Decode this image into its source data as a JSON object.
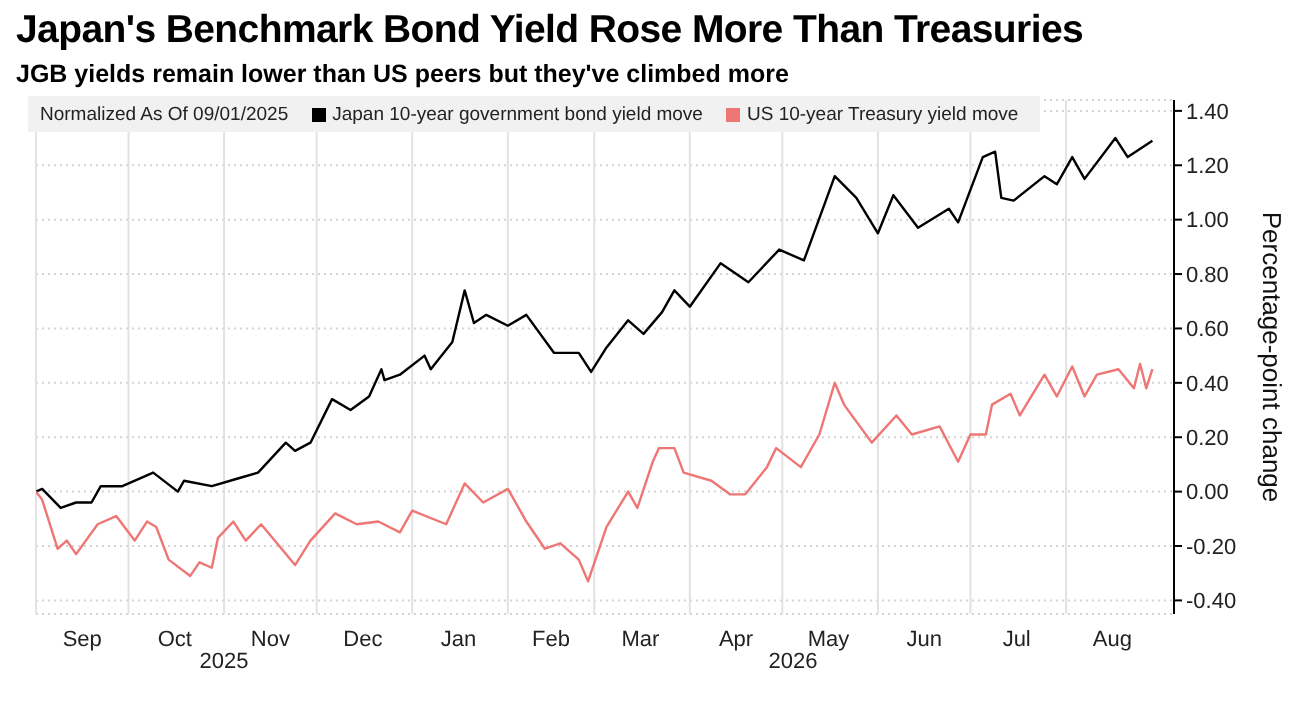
{
  "chart_data": {
    "type": "line",
    "title": "Japan's Benchmark Bond Yield Rose More Than Treasuries",
    "subtitle": "JGB yields remain lower than US peers but they've climbed more",
    "ylabel": "Percentage-point change",
    "legend_title": "Normalized As Of 09/01/2025",
    "legend": "top",
    "grid": true,
    "marker": "none",
    "line_style": "solid",
    "xlim": [
      "2025-09-01",
      "2026-09-05"
    ],
    "xticks": [
      {
        "value": "2025-09-01",
        "label": null
      },
      {
        "value": "2025-09-16",
        "label": "Sep"
      },
      {
        "value": "2025-10-01",
        "label": null
      },
      {
        "value": "2025-10-16",
        "label": "Oct"
      },
      {
        "value": "2025-11-01",
        "label": null
      },
      {
        "value": "2025-11-16",
        "label": "Nov"
      },
      {
        "value": "2025-12-01",
        "label": null
      },
      {
        "value": "2025-12-16",
        "label": "Dec"
      },
      {
        "value": "2026-01-01",
        "label": null
      },
      {
        "value": "2026-01-16",
        "label": "Jan"
      },
      {
        "value": "2026-02-01",
        "label": null
      },
      {
        "value": "2026-02-15",
        "label": "Feb"
      },
      {
        "value": "2026-03-01",
        "label": null
      },
      {
        "value": "2026-03-16",
        "label": "Mar"
      },
      {
        "value": "2026-04-01",
        "label": null
      },
      {
        "value": "2026-04-16",
        "label": "Apr"
      },
      {
        "value": "2026-05-01",
        "label": null
      },
      {
        "value": "2026-05-16",
        "label": "May"
      },
      {
        "value": "2026-06-01",
        "label": null
      },
      {
        "value": "2026-06-16",
        "label": "Jun"
      },
      {
        "value": "2026-07-01",
        "label": null
      },
      {
        "value": "2026-07-16",
        "label": "Jul"
      },
      {
        "value": "2026-08-01",
        "label": null
      },
      {
        "value": "2026-08-16",
        "label": "Aug"
      }
    ],
    "ylim": [
      -0.45,
      1.44
    ],
    "yticks": [
      {
        "value": -0.4,
        "label": "-0.40"
      },
      {
        "value": -0.2,
        "label": "-0.20"
      },
      {
        "value": 0,
        "label": "0.00"
      },
      {
        "value": 0.2,
        "label": "0.20"
      },
      {
        "value": 0.4,
        "label": "0.40"
      },
      {
        "value": 0.6,
        "label": "0.60"
      },
      {
        "value": 0.8,
        "label": "0.80"
      },
      {
        "value": 1.0,
        "label": "1.00"
      },
      {
        "value": 1.2,
        "label": "1.20"
      },
      {
        "value": 1.4,
        "label": "1.40"
      }
    ],
    "annotations": [
      "2025",
      "2026"
    ],
    "series": [
      {
        "name": "Japan 10-year government bond yield move",
        "color": "#000000",
        "x": [
          "2025-09-01",
          "2025-09-03",
          "2025-09-09",
          "2025-09-14",
          "2025-09-19",
          "2025-09-22",
          "2025-09-29",
          "2025-10-09",
          "2025-10-17",
          "2025-10-19",
          "2025-10-28",
          "2025-11-06",
          "2025-11-12",
          "2025-11-21",
          "2025-11-24",
          "2025-11-29",
          "2025-12-06",
          "2025-12-12",
          "2025-12-18",
          "2025-12-22",
          "2025-12-23",
          "2025-12-28",
          "2026-01-05",
          "2026-01-07",
          "2026-01-14",
          "2026-01-18",
          "2026-01-21",
          "2026-01-25",
          "2026-02-01",
          "2026-02-07",
          "2026-02-16",
          "2026-02-24",
          "2026-02-28",
          "2026-03-05",
          "2026-03-12",
          "2026-03-17",
          "2026-03-23",
          "2026-03-27",
          "2026-04-01",
          "2026-04-11",
          "2026-04-20",
          "2026-04-30",
          "2026-05-08",
          "2026-05-18",
          "2026-05-25",
          "2026-06-01",
          "2026-06-06",
          "2026-06-14",
          "2026-06-24",
          "2026-06-27",
          "2026-07-05",
          "2026-07-09",
          "2026-07-11",
          "2026-07-15",
          "2026-07-25",
          "2026-07-29",
          "2026-08-03",
          "2026-08-07",
          "2026-08-17",
          "2026-08-21",
          "2026-08-29"
        ],
        "values": [
          0.0,
          0.01,
          -0.06,
          -0.04,
          -0.04,
          0.02,
          0.02,
          0.07,
          0.0,
          0.04,
          0.02,
          0.05,
          0.07,
          0.18,
          0.15,
          0.18,
          0.34,
          0.3,
          0.35,
          0.45,
          0.41,
          0.43,
          0.5,
          0.45,
          0.55,
          0.74,
          0.62,
          0.65,
          0.61,
          0.65,
          0.51,
          0.51,
          0.44,
          0.53,
          0.63,
          0.58,
          0.66,
          0.74,
          0.68,
          0.84,
          0.77,
          0.89,
          0.85,
          1.16,
          1.08,
          0.95,
          1.09,
          0.97,
          1.04,
          0.99,
          1.23,
          1.25,
          1.08,
          1.07,
          1.16,
          1.13,
          1.23,
          1.15,
          1.3,
          1.23,
          1.29
        ]
      },
      {
        "name": "US 10-year Treasury yield move",
        "color": "#ee7674",
        "x": [
          "2025-09-01",
          "2025-09-03",
          "2025-09-08",
          "2025-09-11",
          "2025-09-14",
          "2025-09-21",
          "2025-09-27",
          "2025-10-03",
          "2025-10-07",
          "2025-10-10",
          "2025-10-14",
          "2025-10-21",
          "2025-10-24",
          "2025-10-28",
          "2025-10-30",
          "2025-11-04",
          "2025-11-08",
          "2025-11-13",
          "2025-11-24",
          "2025-11-29",
          "2025-12-07",
          "2025-12-14",
          "2025-12-21",
          "2025-12-28",
          "2026-01-01",
          "2026-01-12",
          "2026-01-18",
          "2026-01-24",
          "2026-02-01",
          "2026-02-07",
          "2026-02-13",
          "2026-02-18",
          "2026-02-24",
          "2026-02-27",
          "2026-03-05",
          "2026-03-12",
          "2026-03-15",
          "2026-03-20",
          "2026-03-22",
          "2026-03-27",
          "2026-03-30",
          "2026-04-08",
          "2026-04-14",
          "2026-04-19",
          "2026-04-26",
          "2026-04-29",
          "2026-05-07",
          "2026-05-13",
          "2026-05-18",
          "2026-05-21",
          "2026-05-30",
          "2026-06-07",
          "2026-06-12",
          "2026-06-21",
          "2026-06-27",
          "2026-07-01",
          "2026-07-06",
          "2026-07-08",
          "2026-07-14",
          "2026-07-17",
          "2026-07-25",
          "2026-07-29",
          "2026-08-03",
          "2026-08-07",
          "2026-08-11",
          "2026-08-18",
          "2026-08-23",
          "2026-08-25",
          "2026-08-27",
          "2026-08-29"
        ],
        "values": [
          0.0,
          -0.03,
          -0.21,
          -0.18,
          -0.23,
          -0.12,
          -0.09,
          -0.18,
          -0.11,
          -0.13,
          -0.25,
          -0.31,
          -0.26,
          -0.28,
          -0.17,
          -0.11,
          -0.18,
          -0.12,
          -0.27,
          -0.18,
          -0.08,
          -0.12,
          -0.11,
          -0.15,
          -0.07,
          -0.12,
          0.03,
          -0.04,
          0.01,
          -0.11,
          -0.21,
          -0.19,
          -0.25,
          -0.33,
          -0.13,
          0.0,
          -0.06,
          0.11,
          0.16,
          0.16,
          0.07,
          0.04,
          -0.01,
          -0.01,
          0.09,
          0.16,
          0.09,
          0.21,
          0.4,
          0.32,
          0.18,
          0.28,
          0.21,
          0.24,
          0.11,
          0.21,
          0.21,
          0.32,
          0.36,
          0.28,
          0.43,
          0.35,
          0.46,
          0.35,
          0.43,
          0.45,
          0.38,
          0.47,
          0.38,
          0.45
        ]
      }
    ]
  }
}
